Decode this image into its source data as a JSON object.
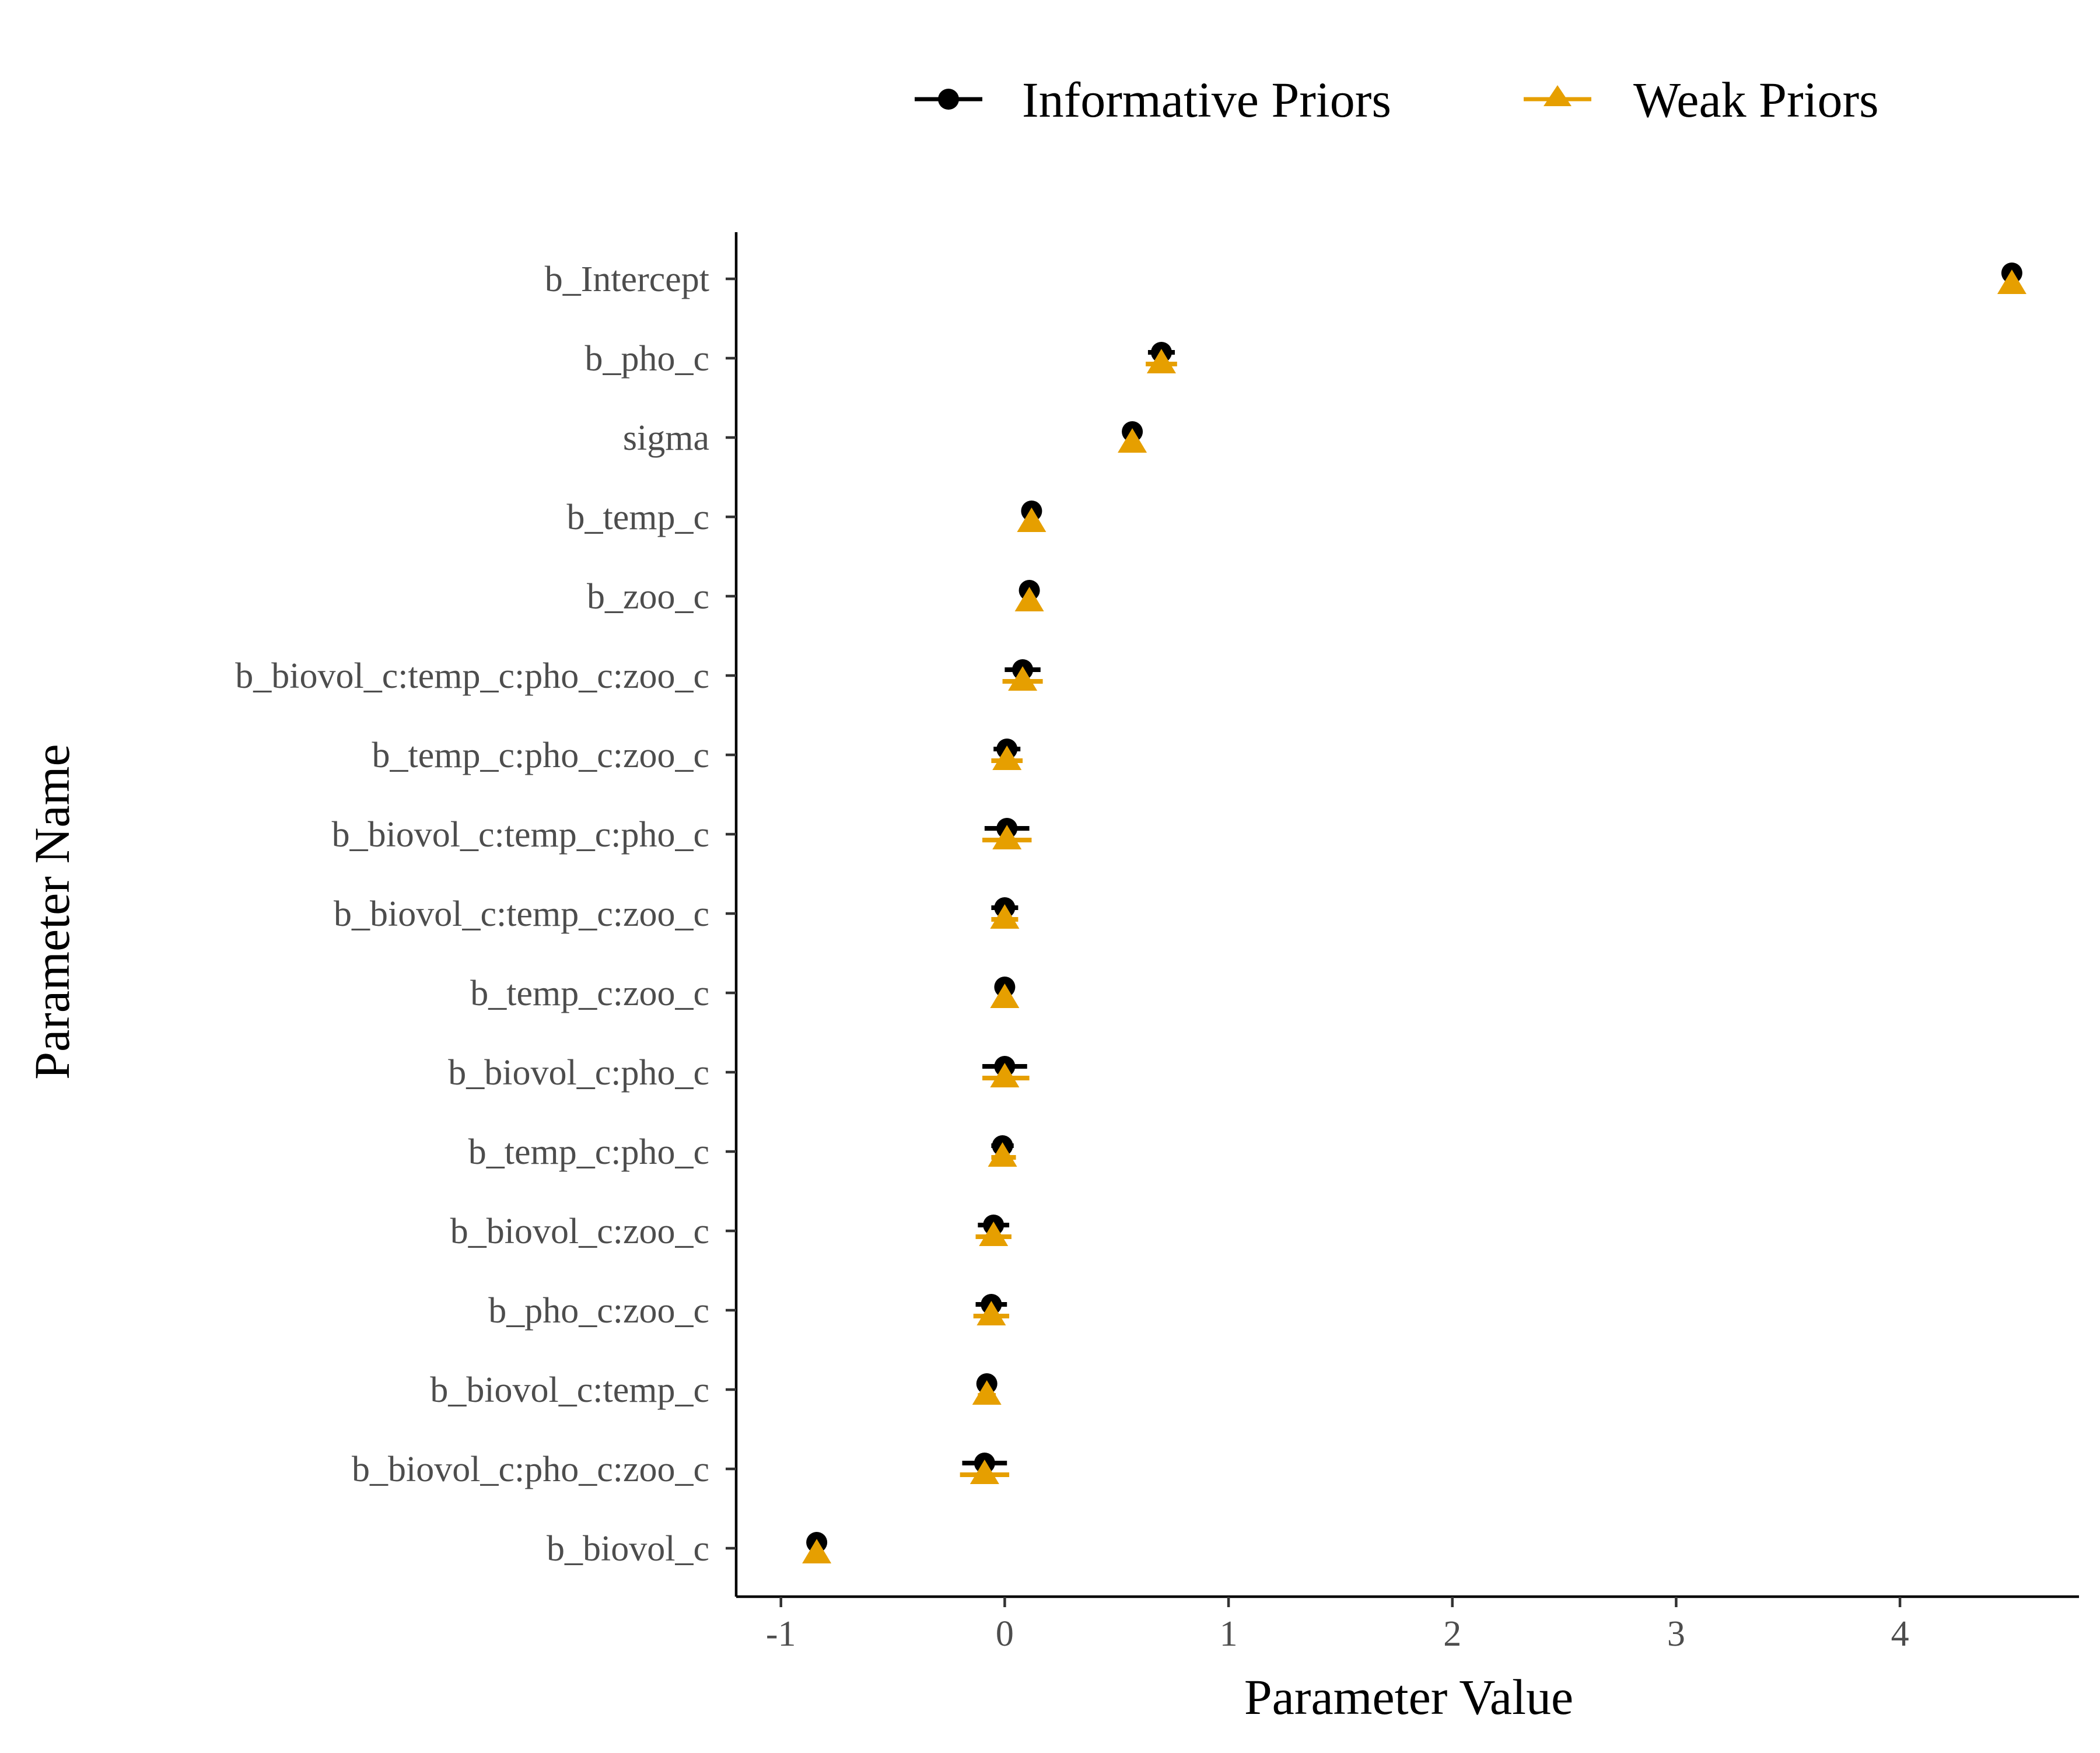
{
  "chart_data": {
    "type": "scatter",
    "title": "",
    "xlabel": "Parameter Value",
    "ylabel": "Parameter Name",
    "xlim": [
      -1.2,
      4.8
    ],
    "xticks": [
      -1,
      0,
      1,
      2,
      3,
      4
    ],
    "xtick_labels": [
      "-1",
      "0",
      "1",
      "2",
      "3",
      "4"
    ],
    "grid": false,
    "legend_position": "top",
    "categories": [
      "b_Intercept",
      "b_pho_c",
      "sigma",
      "b_temp_c",
      "b_zoo_c",
      "b_biovol_c:temp_c:pho_c:zoo_c",
      "b_temp_c:pho_c:zoo_c",
      "b_biovol_c:temp_c:pho_c",
      "b_biovol_c:temp_c:zoo_c",
      "b_temp_c:zoo_c",
      "b_biovol_c:pho_c",
      "b_temp_c:pho_c",
      "b_biovol_c:zoo_c",
      "b_pho_c:zoo_c",
      "b_biovol_c:temp_c",
      "b_biovol_c:pho_c:zoo_c",
      "b_biovol_c"
    ],
    "series": [
      {
        "name": "Informative Priors",
        "color": "#000000",
        "marker": "circle",
        "values": [
          4.5,
          0.7,
          0.57,
          0.12,
          0.11,
          0.08,
          0.01,
          0.01,
          0.0,
          0.0,
          0.0,
          -0.01,
          -0.05,
          -0.06,
          -0.08,
          -0.09,
          -0.84
        ],
        "lower": [
          4.48,
          0.64,
          0.54,
          0.09,
          0.08,
          0.0,
          -0.05,
          -0.09,
          -0.06,
          -0.02,
          -0.1,
          -0.06,
          -0.12,
          -0.13,
          -0.11,
          -0.19,
          -0.86
        ],
        "upper": [
          4.52,
          0.76,
          0.6,
          0.15,
          0.14,
          0.16,
          0.07,
          0.11,
          0.06,
          0.02,
          0.1,
          0.04,
          0.02,
          0.01,
          -0.05,
          0.01,
          -0.82
        ]
      },
      {
        "name": "Weak Priors",
        "color": "#E69F00",
        "marker": "triangle",
        "values": [
          4.5,
          0.7,
          0.57,
          0.12,
          0.11,
          0.08,
          0.01,
          0.01,
          0.0,
          0.0,
          0.0,
          -0.01,
          -0.05,
          -0.06,
          -0.08,
          -0.09,
          -0.84
        ],
        "lower": [
          4.48,
          0.63,
          0.54,
          0.09,
          0.08,
          -0.01,
          -0.06,
          -0.1,
          -0.06,
          -0.02,
          -0.1,
          -0.06,
          -0.13,
          -0.14,
          -0.12,
          -0.2,
          -0.86
        ],
        "upper": [
          4.52,
          0.77,
          0.6,
          0.15,
          0.14,
          0.17,
          0.08,
          0.12,
          0.06,
          0.02,
          0.11,
          0.05,
          0.03,
          0.02,
          -0.04,
          0.02,
          -0.82
        ]
      }
    ]
  }
}
